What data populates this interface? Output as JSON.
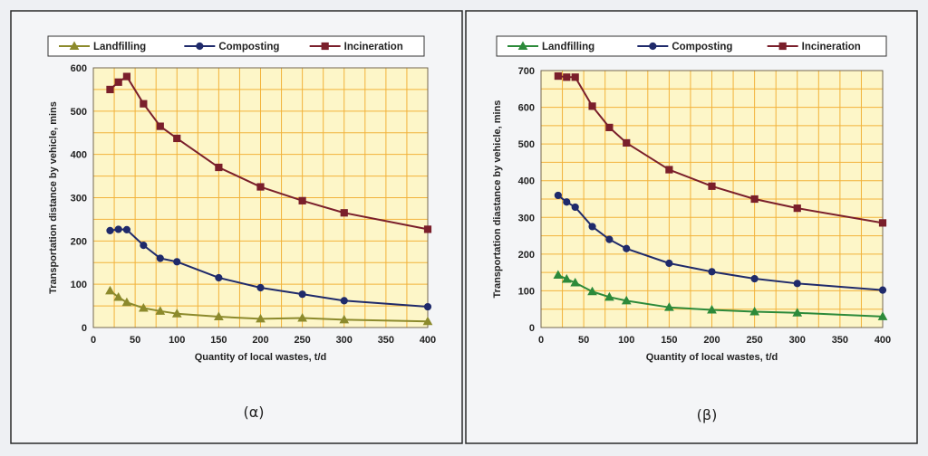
{
  "chart_data": [
    {
      "type": "line",
      "panel_label": "(α)",
      "xlabel": "Quantity of local wastes, t/d",
      "ylabel": "Transportation distance by vehicle, mins",
      "xlim": [
        0,
        400
      ],
      "ylim": [
        0,
        600
      ],
      "xticks": [
        0,
        50,
        100,
        150,
        200,
        250,
        300,
        350,
        400
      ],
      "yticks": [
        0,
        100,
        200,
        300,
        400,
        500,
        600
      ],
      "grid": true,
      "legend_position": "top",
      "series": [
        {
          "name": "Landfilling",
          "color": "#8c8a2c",
          "marker": "triangle",
          "x": [
            20,
            30,
            40,
            60,
            80,
            100,
            150,
            200,
            250,
            300,
            400
          ],
          "y": [
            85,
            70,
            58,
            45,
            38,
            32,
            25,
            20,
            22,
            18,
            14
          ]
        },
        {
          "name": "Composting",
          "color": "#1f2a6b",
          "marker": "circle",
          "x": [
            20,
            30,
            40,
            60,
            80,
            100,
            150,
            200,
            250,
            300,
            400
          ],
          "y": [
            224,
            227,
            226,
            190,
            160,
            152,
            115,
            92,
            77,
            62,
            48
          ]
        },
        {
          "name": "Incineration",
          "color": "#7a1f2b",
          "marker": "square",
          "x": [
            20,
            30,
            40,
            60,
            80,
            100,
            150,
            200,
            250,
            300,
            400
          ],
          "y": [
            550,
            567,
            580,
            517,
            465,
            437,
            370,
            325,
            293,
            265,
            227
          ]
        }
      ]
    },
    {
      "type": "line",
      "panel_label": "(β)",
      "xlabel": "Quantity of local wastes, t/d",
      "ylabel": "Transportation diastance by vehicle, mins",
      "xlim": [
        0,
        400
      ],
      "ylim": [
        0,
        700
      ],
      "xticks": [
        0,
        50,
        100,
        150,
        200,
        250,
        300,
        350,
        400
      ],
      "yticks": [
        0,
        100,
        200,
        300,
        400,
        500,
        600,
        700
      ],
      "grid": true,
      "legend_position": "top",
      "series": [
        {
          "name": "Landfilling",
          "color": "#2c8a3a",
          "marker": "triangle",
          "x": [
            20,
            30,
            40,
            60,
            80,
            100,
            150,
            200,
            250,
            300,
            400
          ],
          "y": [
            143,
            132,
            122,
            98,
            83,
            73,
            55,
            48,
            43,
            40,
            30
          ]
        },
        {
          "name": "Composting",
          "color": "#1f2a6b",
          "marker": "circle",
          "x": [
            20,
            30,
            40,
            60,
            80,
            100,
            150,
            200,
            250,
            300,
            400
          ],
          "y": [
            360,
            342,
            328,
            275,
            240,
            215,
            175,
            152,
            133,
            120,
            102
          ]
        },
        {
          "name": "Incineration",
          "color": "#7a1f2b",
          "marker": "square",
          "x": [
            20,
            30,
            40,
            60,
            80,
            100,
            150,
            200,
            250,
            300,
            400
          ],
          "y": [
            685,
            682,
            682,
            603,
            545,
            503,
            430,
            385,
            350,
            325,
            285
          ]
        }
      ]
    }
  ]
}
